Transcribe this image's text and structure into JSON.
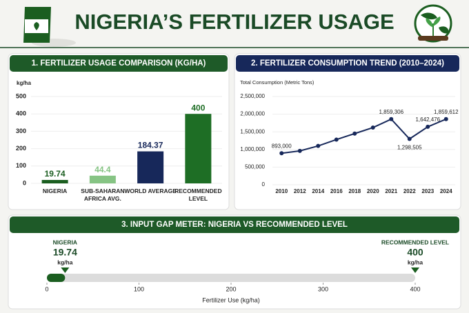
{
  "title": "NIGERIA’S FERTILIZER USAGE",
  "chart_data": [
    {
      "type": "bar",
      "title": "1. FERTILIZER USAGE COMPARISON (KG/HA)",
      "y_label": "kg/ha",
      "categories": [
        "NIGERIA",
        "SUB-SAHARAN AFRICA AVG.",
        "WORLD AVERAGE",
        "RECOMMENDED LEVEL"
      ],
      "values": [
        19.74,
        44.4,
        184.37,
        400
      ],
      "colors": [
        "#1b5e20",
        "#86c484",
        "#17285a",
        "#1e6e25"
      ],
      "ylim": [
        0,
        500
      ],
      "yticks": [
        0,
        100,
        200,
        300,
        400,
        500
      ],
      "grid": true
    },
    {
      "type": "line",
      "title": "2. FERTILIZER CONSUMPTION TREND (2010–2024)",
      "y_label": "Total Consumption (Metric Tons)",
      "categories": [
        "2010",
        "2012",
        "2014",
        "2016",
        "2018",
        "2020",
        "2021",
        "2022",
        "2023",
        "2024"
      ],
      "values": [
        893000,
        960000,
        1100000,
        1280000,
        1450000,
        1620000,
        1859306,
        1298505,
        1642476,
        1859612
      ],
      "value_labels": [
        "893,000",
        null,
        null,
        null,
        null,
        null,
        "1,859,306",
        "1,298,505",
        "1,642,476",
        "1,859,612"
      ],
      "color": "#17285a",
      "ylim": [
        0,
        2500000
      ],
      "yticks": [
        0,
        {
          "value": 500000,
          "label": "500,000"
        },
        {
          "value": 1000000,
          "label": "1,000,000"
        },
        {
          "value": 1500000,
          "label": "1,500,000"
        },
        {
          "value": 2000000,
          "label": "2,000,000"
        },
        {
          "value": 2500000,
          "label": "2,500,000"
        }
      ],
      "grid": true
    },
    {
      "type": "gauge",
      "title": "3. INPUT GAP METER: NIGERIA VS RECOMMENDED LEVEL",
      "x_label": "Fertilizer Use (kg/ha)",
      "series": [
        {
          "name": "NIGERIA",
          "value": 19.74,
          "unit": "kg/ha",
          "color": "#1b5e20"
        },
        {
          "name": "RECOMMENDED LEVEL",
          "value": 400,
          "unit": "kg/ha",
          "color": "#1b5e20"
        }
      ],
      "xlim": [
        0,
        400
      ],
      "xticks": [
        0,
        100,
        200,
        300,
        400
      ]
    }
  ]
}
